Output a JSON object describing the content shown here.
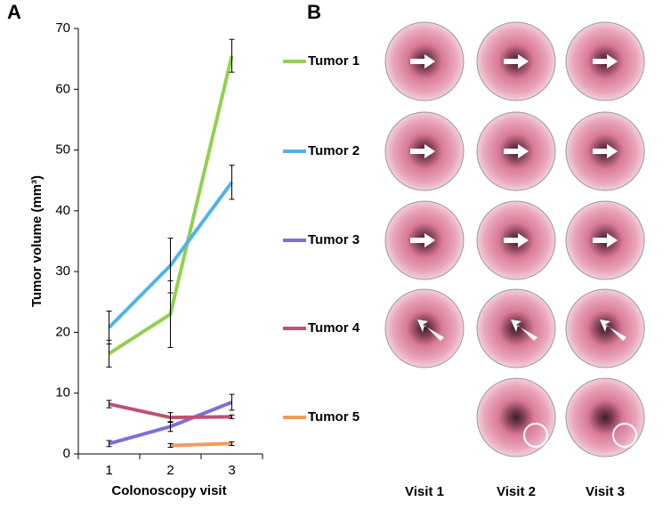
{
  "chart_data": {
    "type": "line",
    "panel_label": "A",
    "y_label": "Tumor volume (mm³)",
    "x_label": "Colonoscopy visit",
    "categories": [
      "1",
      "2",
      "3"
    ],
    "ylim": [
      0,
      70
    ],
    "yticks": [
      0,
      10,
      20,
      30,
      40,
      50,
      60,
      70
    ],
    "series": [
      {
        "name": "Tumor 1",
        "color": "#92d050",
        "values": [
          16.5,
          23,
          65.5
        ],
        "errors": [
          2.2,
          5.5,
          2.7
        ]
      },
      {
        "name": "Tumor 2",
        "color": "#4fb3e8",
        "values": [
          20.8,
          31,
          44.7
        ],
        "errors": [
          2.7,
          4.5,
          2.8
        ]
      },
      {
        "name": "Tumor 3",
        "color": "#7b6fd6",
        "values": [
          1.7,
          4.5,
          8.5
        ],
        "errors": [
          0.5,
          0.8,
          1.3
        ]
      },
      {
        "name": "Tumor 4",
        "color": "#c0506e",
        "values": [
          8.2,
          6,
          6.1
        ],
        "errors": [
          0.6,
          0.8,
          0.3
        ]
      },
      {
        "name": "Tumor 5",
        "color": "#f39a5a",
        "values": [
          null,
          1.4,
          1.7
        ],
        "errors": [
          null,
          0.3,
          0.3
        ]
      }
    ]
  },
  "panel_b": {
    "label": "B",
    "columns": [
      "Visit 1",
      "Visit 2",
      "Visit 3"
    ]
  }
}
